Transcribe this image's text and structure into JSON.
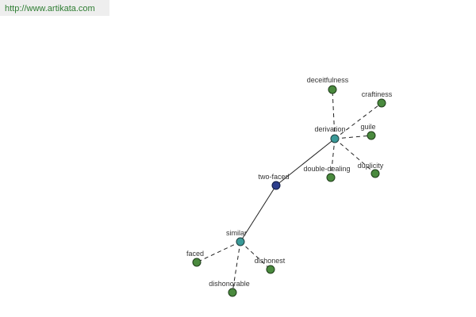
{
  "header": {
    "url": "http://www.artikata.com"
  },
  "nodes": [
    {
      "label": "two-faced"
    },
    {
      "label": "derivation"
    },
    {
      "label": "similar"
    },
    {
      "label": "deceitfulness"
    },
    {
      "label": "craftiness"
    },
    {
      "label": "guile"
    },
    {
      "label": "double-dealing"
    },
    {
      "label": "duplicity"
    },
    {
      "label": "faced"
    },
    {
      "label": "dishonest"
    },
    {
      "label": "dishonorable"
    }
  ]
}
